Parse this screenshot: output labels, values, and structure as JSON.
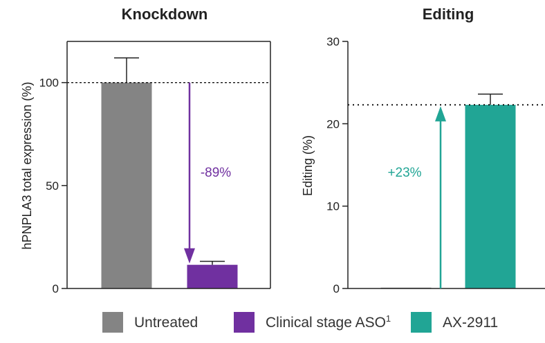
{
  "colors": {
    "untreated": "#848484",
    "aso": "#7030a0",
    "ax2911": "#21a595",
    "axis": "#222222"
  },
  "legend": {
    "items": [
      {
        "label": "Untreated",
        "sup": "",
        "color_key": "untreated"
      },
      {
        "label": "Clinical stage ASO",
        "sup": "1",
        "color_key": "aso"
      },
      {
        "label": "AX-2911",
        "sup": "",
        "color_key": "ax2911"
      }
    ]
  },
  "chart_data": [
    {
      "type": "bar",
      "title": "Knockdown",
      "ylabel": "hPNPLA3  total expression (%)",
      "xlabel": "",
      "ylim": [
        0,
        120
      ],
      "yticks": [
        0,
        50,
        100
      ],
      "categories": [
        "Untreated",
        "Clinical stage ASO"
      ],
      "values": [
        100,
        11.5
      ],
      "error_upper": [
        112,
        13.2
      ],
      "bar_colors": [
        "untreated",
        "aso"
      ],
      "reference_line": {
        "y": 100,
        "style": "dashed"
      },
      "annotation": {
        "text": "-89%",
        "arrow_from": 100,
        "arrow_to": 11.5,
        "color_key": "aso"
      },
      "grid": false
    },
    {
      "type": "bar",
      "title": "Editing",
      "ylabel": "Editing (%)",
      "xlabel": "",
      "ylim": [
        0,
        30
      ],
      "yticks": [
        0,
        10,
        20,
        30
      ],
      "categories": [
        "Untreated",
        "AX-2911"
      ],
      "values": [
        0.1,
        22.3
      ],
      "error_upper": [
        0.1,
        23.6
      ],
      "bar_colors": [
        "untreated",
        "ax2911"
      ],
      "reference_line": {
        "y": 22.3,
        "style": "dotted"
      },
      "annotation": {
        "text": "+23%",
        "arrow_from": 0,
        "arrow_to": 22.3,
        "color_key": "ax2911"
      },
      "grid": false
    }
  ]
}
